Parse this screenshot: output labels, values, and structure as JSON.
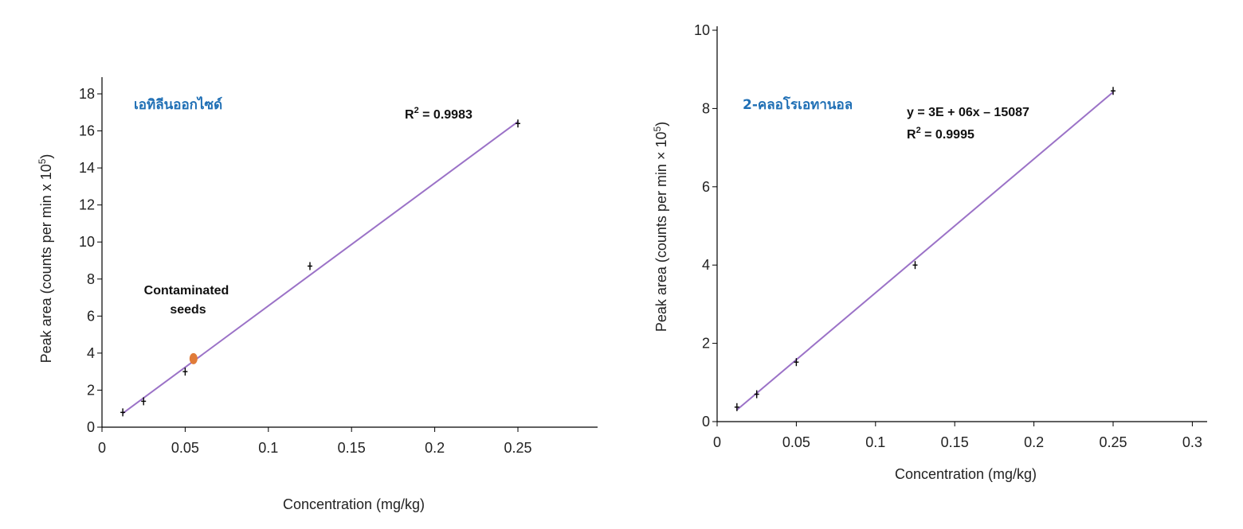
{
  "chart_data": [
    {
      "type": "scatter",
      "title": "เอทิลีนออกไซด์",
      "title_color": "#1f6fb5",
      "xlabel": "Concentration (mg/kg)",
      "ylabel": "Peak area (counts per min x 10",
      "ylabel_exp": "5",
      "ylabel_suffix": ")",
      "xlim": [
        0,
        0.3
      ],
      "ylim": [
        0,
        19
      ],
      "x_ticks": [
        0,
        0.05,
        0.1,
        0.15,
        0.2,
        0.25
      ],
      "x_tick_labels": [
        "0",
        "0.05",
        "0.1",
        "0.15",
        "0.2",
        "0.25"
      ],
      "y_ticks": [
        0,
        2,
        4,
        6,
        8,
        10,
        12,
        14,
        16,
        18
      ],
      "y_tick_labels": [
        "0",
        "2",
        "4",
        "6",
        "8",
        "10",
        "12",
        "14",
        "16",
        "18"
      ],
      "grid": false,
      "series": [
        {
          "x": [
            0.0125,
            0.025,
            0.05,
            0.125,
            0.25
          ],
          "y": [
            0.8,
            1.4,
            3.0,
            8.7,
            16.4
          ]
        }
      ],
      "trendline": {
        "x": [
          0.0125,
          0.25
        ],
        "y": [
          0.75,
          16.5
        ],
        "color": "#9b72c7"
      },
      "highlight": {
        "x": 0.055,
        "y": 3.7,
        "color": "#e07b39",
        "label_line1": "Contaminated",
        "label_line2": "seeds"
      },
      "r2_prefix": "R",
      "r2_exp": "2",
      "r2_value": " = 0.9983",
      "equation": ""
    },
    {
      "type": "scatter",
      "title": "2-คลอโรเอทานอล",
      "title_color": "#1f6fb5",
      "xlabel": "Concentration (mg/kg)",
      "ylabel": "Peak area (counts per min × 10",
      "ylabel_exp": "5",
      "ylabel_suffix": ")",
      "xlim": [
        0,
        0.31
      ],
      "ylim": [
        0,
        10
      ],
      "x_ticks": [
        0,
        0.05,
        0.1,
        0.15,
        0.2,
        0.25,
        0.3
      ],
      "x_tick_labels": [
        "0",
        "0.05",
        "0.1",
        "0.15",
        "0.2",
        "0.25",
        "0.3"
      ],
      "y_ticks": [
        0,
        2,
        4,
        6,
        8,
        10
      ],
      "y_tick_labels": [
        "0",
        "2",
        "4",
        "6",
        "8",
        "10"
      ],
      "grid": false,
      "series": [
        {
          "x": [
            0.0125,
            0.025,
            0.05,
            0.125,
            0.25
          ],
          "y": [
            0.37,
            0.7,
            1.52,
            4.0,
            8.45
          ]
        }
      ],
      "trendline": {
        "x": [
          0.0125,
          0.25
        ],
        "y": [
          0.3,
          8.42
        ],
        "color": "#9b72c7"
      },
      "highlight": null,
      "r2_prefix": "R",
      "r2_exp": "2",
      "r2_value": " = 0.9995",
      "equation": "y = 3E + 06x – 15087"
    }
  ]
}
